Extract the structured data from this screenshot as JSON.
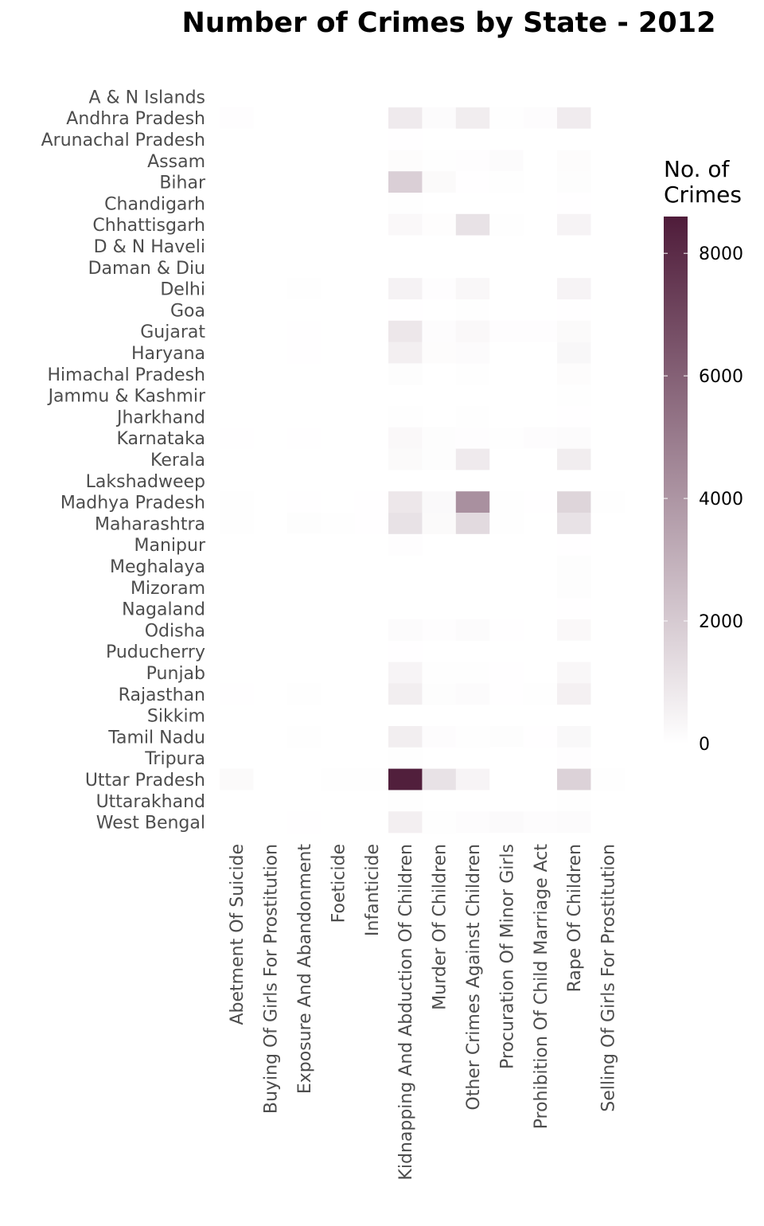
{
  "chart_data": {
    "type": "heatmap",
    "title": "Number of Crimes by State - 2012",
    "xlabel": "",
    "ylabel": "",
    "grid": false,
    "legend": {
      "title_lines": [
        "No. of",
        "Crimes"
      ],
      "position": "right",
      "ticks": [
        0,
        2000,
        4000,
        6000,
        8000
      ],
      "range": [
        0,
        8600
      ],
      "colors": [
        "#ffffff",
        "#4f1c3a"
      ]
    },
    "x_categories": [
      "Abetment Of Suicide",
      "Buying Of Girls For Prostitution",
      "Exposure And Abandonment",
      "Foeticide",
      "Infanticide",
      "Kidnapping And Abduction Of Children",
      "Murder Of Children",
      "Other Crimes Against Children",
      "Procuration Of Minor Girls",
      "Prohibition Of Child Marriage Act",
      "Rape Of Children",
      "Selling Of Girls For Prostitution"
    ],
    "y_categories": [
      "A & N Islands",
      "Andhra Pradesh",
      "Arunachal Pradesh",
      "Assam",
      "Bihar",
      "Chandigarh",
      "Chhattisgarh",
      "D & N Haveli",
      "Daman & Diu",
      "Delhi",
      "Goa",
      "Gujarat",
      "Haryana",
      "Himachal Pradesh",
      "Jammu & Kashmir",
      "Jharkhand",
      "Karnataka",
      "Kerala",
      "Lakshadweep",
      "Madhya Pradesh",
      "Maharashtra",
      "Manipur",
      "Meghalaya",
      "Mizoram",
      "Nagaland",
      "Odisha",
      "Puducherry",
      "Punjab",
      "Rajasthan",
      "Sikkim",
      "Tamil Nadu",
      "Tripura",
      "Uttar Pradesh",
      "Uttarakhand",
      "West Bengal"
    ],
    "values": [
      [
        0,
        0,
        0,
        0,
        0,
        10,
        0,
        5,
        0,
        0,
        8,
        0
      ],
      [
        60,
        0,
        5,
        2,
        0,
        800,
        150,
        700,
        40,
        100,
        750,
        0
      ],
      [
        0,
        0,
        0,
        0,
        0,
        20,
        5,
        5,
        0,
        0,
        10,
        0
      ],
      [
        10,
        0,
        5,
        1,
        0,
        120,
        30,
        60,
        150,
        0,
        120,
        0
      ],
      [
        0,
        0,
        2,
        1,
        0,
        1800,
        200,
        20,
        30,
        0,
        80,
        0
      ],
      [
        0,
        0,
        5,
        0,
        0,
        30,
        5,
        10,
        0,
        0,
        20,
        0
      ],
      [
        5,
        0,
        10,
        5,
        5,
        250,
        70,
        1100,
        40,
        0,
        450,
        0
      ],
      [
        0,
        0,
        0,
        0,
        0,
        5,
        0,
        0,
        0,
        0,
        5,
        0
      ],
      [
        0,
        0,
        0,
        0,
        0,
        5,
        0,
        0,
        0,
        0,
        5,
        0
      ],
      [
        5,
        0,
        30,
        5,
        5,
        500,
        60,
        300,
        5,
        0,
        450,
        0
      ],
      [
        0,
        0,
        2,
        0,
        0,
        20,
        5,
        30,
        0,
        0,
        20,
        0
      ],
      [
        10,
        0,
        20,
        5,
        5,
        900,
        100,
        250,
        60,
        60,
        200,
        0
      ],
      [
        5,
        0,
        20,
        5,
        2,
        600,
        120,
        150,
        0,
        10,
        320,
        0
      ],
      [
        0,
        0,
        2,
        0,
        0,
        80,
        10,
        30,
        0,
        0,
        120,
        0
      ],
      [
        0,
        0,
        0,
        0,
        0,
        15,
        5,
        5,
        0,
        0,
        30,
        0
      ],
      [
        0,
        0,
        2,
        0,
        0,
        25,
        10,
        30,
        0,
        0,
        20,
        0
      ],
      [
        20,
        0,
        20,
        5,
        5,
        250,
        80,
        60,
        30,
        100,
        150,
        0
      ],
      [
        5,
        0,
        10,
        0,
        0,
        200,
        80,
        800,
        10,
        10,
        700,
        0
      ],
      [
        0,
        0,
        0,
        0,
        0,
        0,
        0,
        0,
        0,
        0,
        0,
        0
      ],
      [
        40,
        0,
        20,
        10,
        20,
        900,
        220,
        4200,
        50,
        20,
        1600,
        30
      ],
      [
        40,
        10,
        80,
        40,
        20,
        1100,
        200,
        1400,
        50,
        10,
        1100,
        0
      ],
      [
        0,
        0,
        0,
        0,
        0,
        60,
        0,
        5,
        0,
        0,
        20,
        0
      ],
      [
        0,
        0,
        0,
        0,
        0,
        10,
        5,
        5,
        0,
        0,
        80,
        0
      ],
      [
        0,
        0,
        0,
        0,
        0,
        0,
        0,
        5,
        0,
        0,
        80,
        0
      ],
      [
        0,
        0,
        0,
        0,
        0,
        10,
        0,
        0,
        0,
        0,
        20,
        0
      ],
      [
        5,
        0,
        5,
        2,
        0,
        150,
        60,
        150,
        20,
        0,
        250,
        0
      ],
      [
        0,
        0,
        0,
        0,
        0,
        20,
        0,
        10,
        0,
        0,
        10,
        0
      ],
      [
        5,
        0,
        10,
        5,
        2,
        400,
        50,
        40,
        20,
        0,
        300,
        0
      ],
      [
        20,
        0,
        40,
        10,
        10,
        650,
        80,
        150,
        20,
        50,
        550,
        0
      ],
      [
        0,
        0,
        0,
        0,
        0,
        10,
        0,
        5,
        0,
        0,
        10,
        0
      ],
      [
        10,
        0,
        30,
        2,
        15,
        650,
        100,
        40,
        80,
        20,
        280,
        0
      ],
      [
        0,
        0,
        0,
        0,
        0,
        40,
        0,
        10,
        0,
        0,
        60,
        0
      ],
      [
        200,
        0,
        5,
        30,
        30,
        8500,
        1100,
        400,
        5,
        0,
        1700,
        30
      ],
      [
        0,
        0,
        5,
        0,
        0,
        50,
        10,
        10,
        0,
        0,
        40,
        0
      ],
      [
        0,
        0,
        20,
        0,
        0,
        600,
        30,
        100,
        180,
        100,
        150,
        0
      ]
    ]
  }
}
